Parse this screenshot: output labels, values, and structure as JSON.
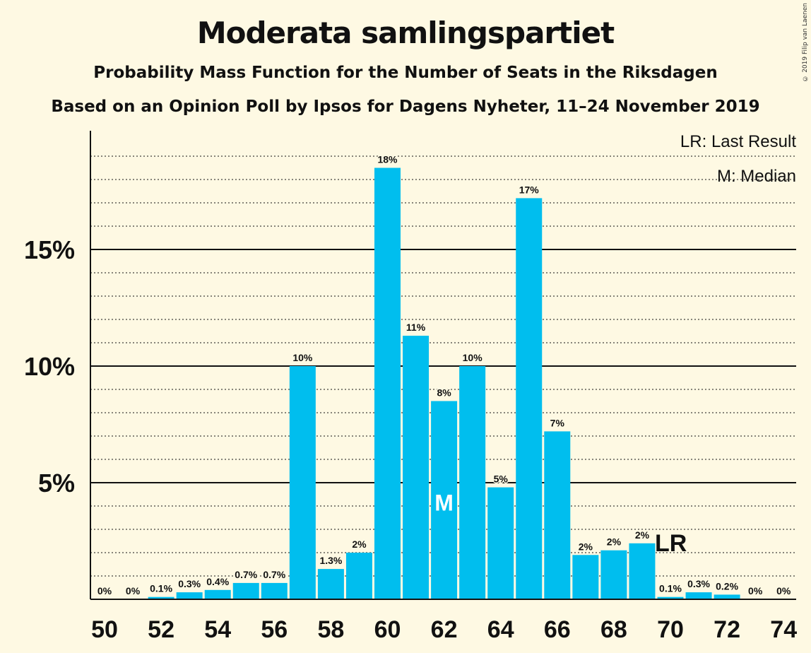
{
  "title": "Moderata samlingspartiet",
  "subtitle": "Probability Mass Function for the Number of Seats in the Riksdagen",
  "subtitle2": "Based on an Opinion Poll by Ipsos for Dagens Nyheter, 11–24 November 2019",
  "copyright": "© 2019 Filip van Laenen",
  "legend": {
    "last_result": "LR: Last Result",
    "median": "M: Median"
  },
  "colors": {
    "bar": "#00BEEE",
    "background": "#FEF9E3",
    "text": "#111111"
  },
  "chart_data": {
    "type": "bar",
    "x": [
      50,
      51,
      52,
      53,
      54,
      55,
      56,
      57,
      58,
      59,
      60,
      61,
      62,
      63,
      64,
      65,
      66,
      67,
      68,
      69,
      70,
      71,
      72,
      73,
      74
    ],
    "values": [
      0,
      0,
      0.1,
      0.3,
      0.4,
      0.7,
      0.7,
      10,
      1.3,
      2,
      18.5,
      11.3,
      8.5,
      10,
      4.8,
      17.2,
      7.2,
      1.9,
      2.1,
      2.4,
      0.1,
      0.3,
      0.2,
      0,
      0
    ],
    "data_labels": [
      "0%",
      "0%",
      "0.1%",
      "0.3%",
      "0.4%",
      "0.7%",
      "0.7%",
      "10%",
      "1.3%",
      "2%",
      "18%",
      "11%",
      "8%",
      "10%",
      "5%",
      "17%",
      "7%",
      "2%",
      "2%",
      "2%",
      "0.1%",
      "0.3%",
      "0.2%",
      "0%",
      "0%"
    ],
    "x_ticks": [
      "50",
      "52",
      "54",
      "56",
      "58",
      "60",
      "62",
      "64",
      "66",
      "68",
      "70",
      "72",
      "74"
    ],
    "y_ticks": [
      "5%",
      "10%",
      "15%"
    ],
    "y_tick_values": [
      5,
      10,
      15
    ],
    "ylim": [
      0,
      20
    ],
    "median": 62,
    "median_label": "M",
    "last_result": 70,
    "last_result_label": "LR",
    "grid": "dotted minor at 1%, solid major at 5%"
  }
}
